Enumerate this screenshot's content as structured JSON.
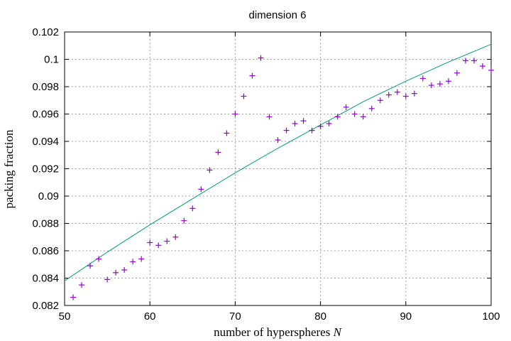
{
  "chart_data": {
    "type": "scatter",
    "title": "dimension 6",
    "xlabel_main": "number of hyperspheres ",
    "xlabel_var": "N",
    "ylabel": "packing fraction",
    "xlim": [
      50,
      100
    ],
    "ylim": [
      0.082,
      0.102
    ],
    "xticks": [
      50,
      60,
      70,
      80,
      90,
      100
    ],
    "xtick_labels": [
      "50",
      "60",
      "70",
      "80",
      "90",
      "100"
    ],
    "yticks": [
      0.082,
      0.084,
      0.086,
      0.088,
      0.09,
      0.092,
      0.094,
      0.096,
      0.098,
      0.1,
      0.102
    ],
    "ytick_labels": [
      "0.082",
      "0.084",
      "0.086",
      "0.088",
      "0.09",
      "0.092",
      "0.094",
      "0.096",
      "0.098",
      "0.1",
      "0.102"
    ],
    "grid": true,
    "colors": {
      "points": "#9400d3",
      "line": "#009e73"
    },
    "series": [
      {
        "type": "scatter",
        "marker": "+",
        "x": [
          51,
          52,
          53,
          54,
          55,
          56,
          57,
          58,
          59,
          60,
          61,
          62,
          63,
          64,
          65,
          66,
          67,
          68,
          69,
          70,
          71,
          72,
          73,
          74,
          75,
          76,
          77,
          78,
          79,
          80,
          81,
          82,
          83,
          84,
          85,
          86,
          87,
          88,
          89,
          90,
          91,
          92,
          93,
          94,
          95,
          96,
          97,
          98,
          99,
          100
        ],
        "y": [
          0.0826,
          0.0835,
          0.0849,
          0.0854,
          0.0839,
          0.0844,
          0.0846,
          0.0852,
          0.0854,
          0.0866,
          0.0864,
          0.0867,
          0.087,
          0.0882,
          0.0891,
          0.0905,
          0.0919,
          0.0932,
          0.0946,
          0.096,
          0.0973,
          0.0988,
          0.1001,
          0.0958,
          0.0941,
          0.0948,
          0.0953,
          0.0955,
          0.0948,
          0.0951,
          0.0953,
          0.0958,
          0.0965,
          0.096,
          0.0958,
          0.0964,
          0.097,
          0.0974,
          0.0976,
          0.0973,
          0.0975,
          0.0986,
          0.0981,
          0.0982,
          0.0984,
          0.099,
          0.0999,
          0.0999,
          0.0995,
          0.0992
        ]
      },
      {
        "type": "line",
        "x": [
          50,
          55,
          60,
          65,
          70,
          75,
          80,
          85,
          90,
          95,
          100
        ],
        "y": [
          0.0838,
          0.0859,
          0.0879,
          0.0898,
          0.0917,
          0.0935,
          0.0952,
          0.0969,
          0.0984,
          0.0998,
          0.1011
        ]
      }
    ]
  }
}
